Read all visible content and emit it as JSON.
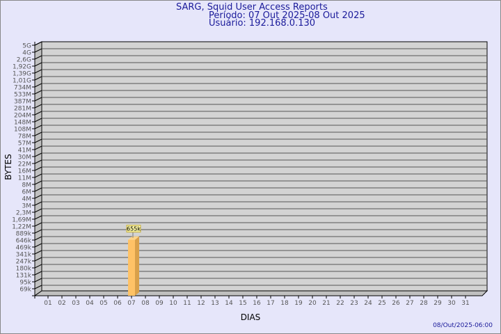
{
  "chart_data": {
    "type": "bar",
    "title": "SARG, Squid User Access Reports",
    "subtitle_period": "Período: 07 Out 2025-08 Out 2025",
    "subtitle_user": "Usuário: 192.168.0.130",
    "xlabel": "DIAS",
    "ylabel": "BYTES",
    "footer": "08/Out/2025-06:00",
    "y_scale": "log",
    "y_ticks": [
      "5G",
      "4G",
      "2,6G",
      "1,92G",
      "1,39G",
      "1,01G",
      "734M",
      "533M",
      "387M",
      "281M",
      "204M",
      "148M",
      "108M",
      "78M",
      "57M",
      "41M",
      "30M",
      "22M",
      "16M",
      "11M",
      "8M",
      "6M",
      "4M",
      "3M",
      "2,3M",
      "1,69M",
      "1,22M",
      "889k",
      "646k",
      "469k",
      "341k",
      "247k",
      "180k",
      "131k",
      "95k",
      "69k"
    ],
    "categories": [
      "01",
      "02",
      "03",
      "04",
      "05",
      "06",
      "07",
      "08",
      "09",
      "10",
      "11",
      "12",
      "13",
      "14",
      "15",
      "16",
      "17",
      "18",
      "19",
      "20",
      "21",
      "22",
      "23",
      "24",
      "25",
      "26",
      "27",
      "28",
      "29",
      "30",
      "31"
    ],
    "bars": [
      {
        "category": "07",
        "value": 655000,
        "label": "655k"
      }
    ],
    "grid": true,
    "colors": {
      "bar": "#ffc266",
      "bar_side": "#d9a04a",
      "wall": "#d3d3d3",
      "text": "#1a1a9a"
    }
  }
}
